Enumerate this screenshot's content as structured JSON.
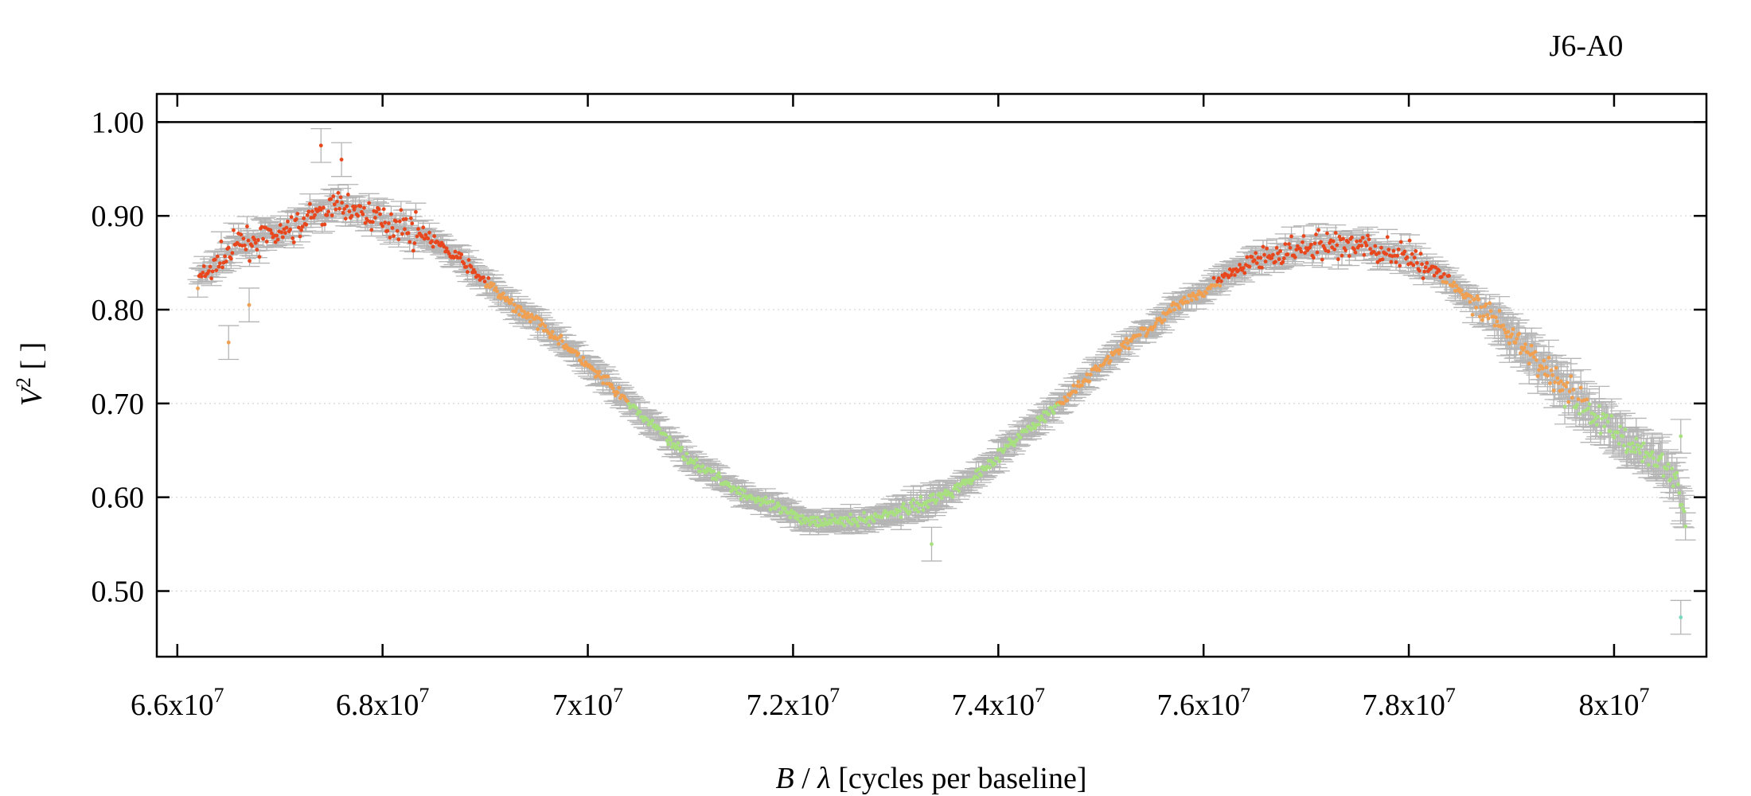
{
  "chart_data": {
    "type": "scatter",
    "title": "J6-A0",
    "xlabel": {
      "var": "B",
      "sep": " / ",
      "lambda": "λ",
      "rest": " [cycles per baseline]"
    },
    "ylabel": {
      "var": "V",
      "sup": "2",
      "rest": " [ ]"
    },
    "xlim": [
      65800000,
      80900000
    ],
    "ylim": [
      0.43,
      1.03
    ],
    "x_ticks": [
      {
        "value": 66000000,
        "mant": "6.6x10",
        "exp": "7"
      },
      {
        "value": 68000000,
        "mant": "6.8x10",
        "exp": "7"
      },
      {
        "value": 70000000,
        "mant": "7x10",
        "exp": "7"
      },
      {
        "value": 72000000,
        "mant": "7.2x10",
        "exp": "7"
      },
      {
        "value": 74000000,
        "mant": "7.4x10",
        "exp": "7"
      },
      {
        "value": 76000000,
        "mant": "7.6x10",
        "exp": "7"
      },
      {
        "value": 78000000,
        "mant": "7.8x10",
        "exp": "7"
      },
      {
        "value": 80000000,
        "mant": "8x10",
        "exp": "7"
      }
    ],
    "y_ticks": [
      {
        "value": 0.5,
        "label": "0.50"
      },
      {
        "value": 0.6,
        "label": "0.60"
      },
      {
        "value": 0.7,
        "label": "0.70"
      },
      {
        "value": 0.8,
        "label": "0.80"
      },
      {
        "value": 0.9,
        "label": "0.90"
      },
      {
        "value": 1.0,
        "label": "1.00"
      }
    ],
    "grid": "horizontal-dotted",
    "reference_line": 1.0,
    "colors": {
      "high": "#e8471e",
      "mid": "#f0a050",
      "low": "#a8e080",
      "lowest": "#7ad8c0",
      "errorbar": "#b5b5b5"
    },
    "series": [
      {
        "x": [
          66200000,
          66400000,
          66600000,
          66800000,
          67000000,
          67200000,
          67400000,
          67600000,
          67800000,
          68000000,
          68200000,
          68400000,
          68600000,
          68800000,
          69000000,
          69200000,
          69400000,
          69600000,
          69800000,
          70000000,
          70200000,
          70400000,
          70600000,
          70800000,
          71000000,
          71200000,
          71400000,
          71600000,
          71800000,
          72000000,
          72200000,
          72400000,
          72600000,
          72800000,
          73000000,
          73200000,
          73400000,
          73600000,
          73800000,
          74000000,
          74200000,
          74400000,
          74600000,
          74800000,
          75000000,
          75200000,
          75400000,
          75600000,
          75800000,
          76000000,
          76200000,
          76400000,
          76600000,
          76800000,
          77000000,
          77200000,
          77400000,
          77600000,
          77800000,
          78000000,
          78200000,
          78400000,
          78600000,
          78800000,
          79000000,
          79200000,
          79400000,
          79600000,
          79800000,
          80000000,
          80200000,
          80400000,
          80600000,
          80700000
        ],
        "y": [
          0.83,
          0.85,
          0.87,
          0.875,
          0.88,
          0.89,
          0.905,
          0.91,
          0.905,
          0.895,
          0.89,
          0.88,
          0.865,
          0.85,
          0.83,
          0.81,
          0.795,
          0.78,
          0.76,
          0.74,
          0.72,
          0.7,
          0.68,
          0.66,
          0.64,
          0.625,
          0.61,
          0.6,
          0.59,
          0.58,
          0.575,
          0.575,
          0.575,
          0.578,
          0.585,
          0.59,
          0.6,
          0.61,
          0.625,
          0.645,
          0.665,
          0.68,
          0.7,
          0.72,
          0.74,
          0.76,
          0.775,
          0.79,
          0.81,
          0.82,
          0.835,
          0.845,
          0.855,
          0.86,
          0.865,
          0.868,
          0.87,
          0.866,
          0.86,
          0.855,
          0.845,
          0.83,
          0.81,
          0.79,
          0.77,
          0.75,
          0.73,
          0.71,
          0.69,
          0.67,
          0.655,
          0.64,
          0.62,
          0.58
        ]
      }
    ],
    "outliers": [
      {
        "x": 66500000,
        "y": 0.765
      },
      {
        "x": 66700000,
        "y": 0.805
      },
      {
        "x": 67400000,
        "y": 0.975
      },
      {
        "x": 67600000,
        "y": 0.96
      },
      {
        "x": 73350000,
        "y": 0.55
      },
      {
        "x": 80650000,
        "y": 0.665
      },
      {
        "x": 80650000,
        "y": 0.472
      }
    ]
  }
}
